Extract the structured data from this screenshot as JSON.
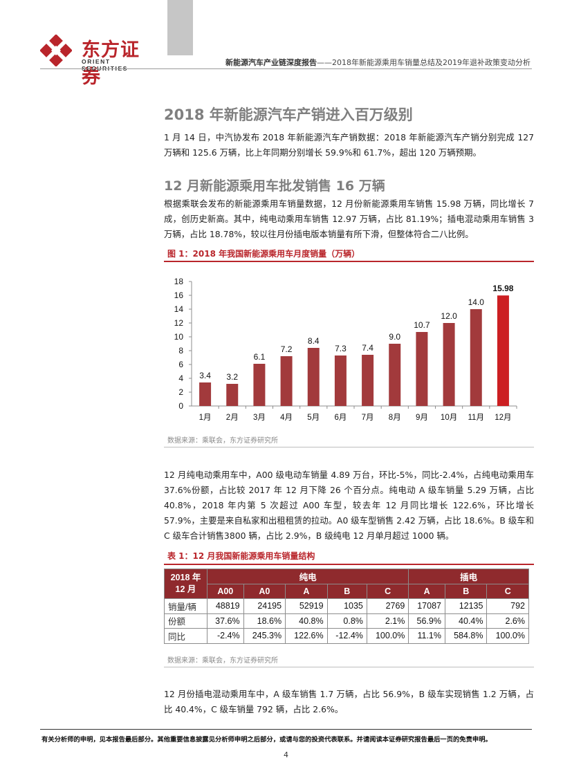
{
  "header": {
    "logo_cn": "东方证券",
    "logo_en": "ORIENT SECURITIES",
    "report_title": "新能源汽车产业链深度报告",
    "report_subtitle": "——2018年新能源乘用车销量总结及2019年退补政策变动分析",
    "colors": {
      "brand": "#b9252b",
      "gray_block": "#c6c6c6"
    }
  },
  "section1": {
    "heading": "2018 年新能源汽车产销进入百万级别",
    "paragraph": "1 月 14 日，中汽协发布 2018 年新能源汽车产销数据：2018 年新能源汽车产销分别完成 127 万辆和 125.6 万辆，比上年同期分别增长 59.9%和 61.7%，超出 120 万辆预期。"
  },
  "section2": {
    "heading": "12 月新能源乘用车批发销售 16 万辆",
    "paragraph": "根据乘联会发布的新能源乘用车销量数据，12 月份新能源乘用车销售 15.98 万辆，同比增长 7 成，创历史新高。其中，纯电动乘用车销售 12.97 万辆，占比 81.19%；插电混动乘用车销售 3 万辆，占比 18.78%，较以往月份插电版本销量有所下滑，但整体符合二八比例。"
  },
  "figure1": {
    "title": "图 1：2018 年我国新能源乘用车月度销量（万辆）",
    "source": "数据来源：乘联会，东方证券研究所"
  },
  "chart_data": {
    "type": "bar",
    "title": "图 1：2018 年我国新能源乘用车月度销量（万辆）",
    "categories": [
      "1月",
      "2月",
      "3月",
      "4月",
      "5月",
      "6月",
      "7月",
      "8月",
      "9月",
      "10月",
      "11月",
      "12月"
    ],
    "values": [
      3.4,
      3.2,
      6.1,
      7.2,
      8.4,
      7.3,
      7.4,
      9.0,
      10.7,
      12.0,
      14.0,
      15.98
    ],
    "labels": [
      "3.4",
      "3.2",
      "6.1",
      "7.2",
      "8.4",
      "7.3",
      "7.4",
      "9.0",
      "10.7",
      "12.0",
      "14.0",
      "15.98"
    ],
    "ylim": [
      0,
      18
    ],
    "yticks": [
      "0",
      "2",
      "4",
      "6",
      "8",
      "10",
      "12",
      "14",
      "16",
      "18"
    ],
    "grid": false,
    "bar_color": "#a23a3c",
    "highlight_color": "#cc1f22",
    "highlight_index": 11
  },
  "section3": {
    "paragraph": "12 月纯电动乘用车中，A00 级电动车销量 4.89 万台，环比-5%，同比-2.4%，占纯电动乘用车 37.6%份额，占比较 2017 年 12 月下降 26 个百分点。纯电动 A 级车销量 5.29 万辆，占比 40.8%，2018 年内第 5 次超过 A00 车型，较去年 12 月同比增长 122.6%，环比增长 57.9%，主要是来自私家和出租租赁的拉动。A0 级车型销售 2.42 万辆，占比 18.6%。B 级车和 C 级车合计销售3800 辆，占比 2.9%，B 级纯电 12 月单月超过 1000 辆。"
  },
  "table1": {
    "title": "表 1：12 月我国新能源乘用车销量结构",
    "corner_line1": "2018 年",
    "corner_line2": "12 月",
    "group_bev": "纯电",
    "group_phev": "插电",
    "columns": [
      "A00",
      "A0",
      "A",
      "B",
      "C",
      "A",
      "B",
      "C"
    ],
    "rows": [
      {
        "label": "销量/辆",
        "cells": [
          "48819",
          "24195",
          "52919",
          "1035",
          "2769",
          "17087",
          "12135",
          "792"
        ]
      },
      {
        "label": "份额",
        "cells": [
          "37.6%",
          "18.6%",
          "40.8%",
          "0.8%",
          "2.1%",
          "56.9%",
          "40.4%",
          "2.6%"
        ]
      },
      {
        "label": "同比",
        "cells": [
          "-2.4%",
          "245.3%",
          "122.6%",
          "-12.4%",
          "100.0%",
          "11.1%",
          "584.8%",
          "100.0%"
        ]
      }
    ],
    "source": "数据来源：乘联会，东方证券研究所"
  },
  "section4": {
    "paragraph": "12 月份插电混动乘用车中，A 级车销售 1.7 万辆，占比 56.9%，B 级车实现销售 1.2 万辆，占比 40.4%，C 级车销量 792 辆，占比 2.6%。"
  },
  "footer": {
    "disclaimer": "有关分析师的申明，见本报告最后部分。其他重要信息披露见分析师申明之后部分，或请与您的投资代表联系。并请阅读本证券研究报告最后一页的免责申明。",
    "page_number": "4"
  }
}
